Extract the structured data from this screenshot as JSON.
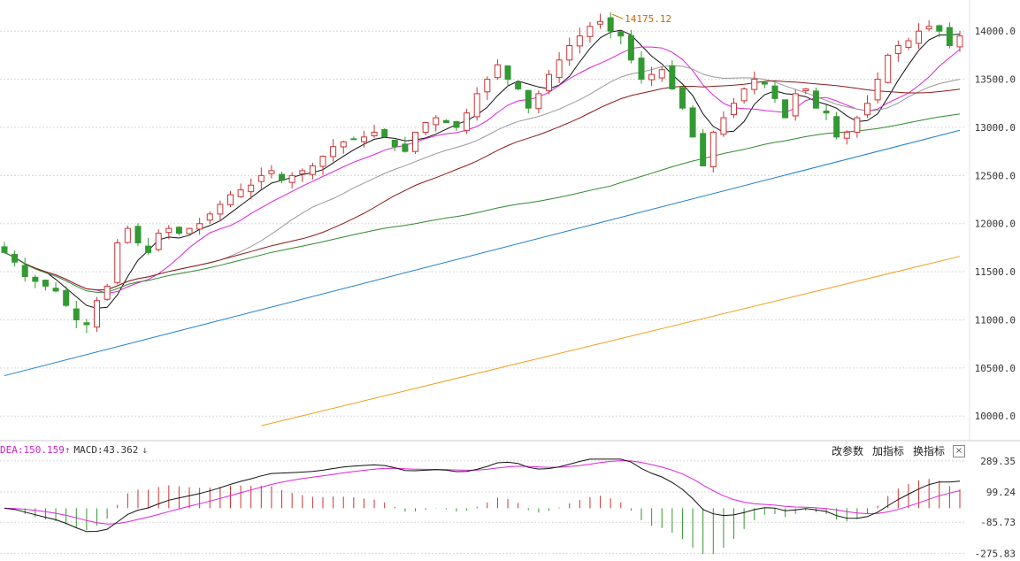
{
  "chart_data": [
    {
      "type": "candlestick",
      "yticks": [
        "14000.0",
        "13500.0",
        "13000.0",
        "12500.0",
        "12000.0",
        "11500.0",
        "11000.0",
        "10500.0",
        "10000.0"
      ],
      "ylim": [
        9800,
        14250
      ],
      "max_annotation": {
        "value": "14175.12",
        "color": "#cc6600"
      },
      "up_color": "#cc3333",
      "down_color": "#339933",
      "candles_seed": {
        "close_path": [
          11700,
          11600,
          11450,
          11400,
          11350,
          11300,
          11150,
          11000,
          10950,
          11200,
          11350,
          11800,
          11950,
          11800,
          11700,
          11900,
          11950,
          11900,
          11950,
          12000,
          12100,
          12200,
          12300,
          12350,
          12400,
          12500,
          12550,
          12450,
          12500,
          12550,
          12600,
          12700,
          12800,
          12850,
          12880,
          12900,
          12950,
          12900,
          12800,
          12750,
          12950,
          13050,
          13100,
          13050,
          13000,
          13150,
          13350,
          13500,
          13650,
          13500,
          13400,
          13200,
          13350,
          13550,
          13700,
          13850,
          13950,
          14050,
          14100,
          14000,
          13950,
          13700,
          13500,
          13550,
          13600,
          13400,
          13200,
          12900,
          12600,
          12950,
          13100,
          13250,
          13400,
          13500,
          13450,
          13300,
          13100,
          13350,
          13400,
          13200,
          13150,
          12900,
          12950,
          13100,
          13250,
          13500,
          13750,
          13850,
          13900,
          14000,
          14050,
          14000,
          13850,
          13950
        ]
      },
      "ma_lines": [
        {
          "color": "#111111"
        },
        {
          "color": "#dd22dd"
        },
        {
          "color": "#999999"
        },
        {
          "color": "#8b1a1a"
        },
        {
          "color": "#2e8b2e"
        },
        {
          "color": "#1e7fc8"
        },
        {
          "color": "#f0a020"
        }
      ]
    },
    {
      "type": "macd",
      "yticks": [
        "289.35",
        "99.24",
        "-85.73",
        "-275.83"
      ],
      "ylim": [
        -290,
        305
      ],
      "legend": {
        "dea": "DEA:150.159",
        "macd": "MACD:43.362"
      },
      "dif_color": "#111111",
      "dea_color": "#dd22dd"
    }
  ],
  "toolbar": {
    "change_params": "改参数",
    "add_indicator": "加指标",
    "switch_indicator": "换指标",
    "close": "×"
  }
}
